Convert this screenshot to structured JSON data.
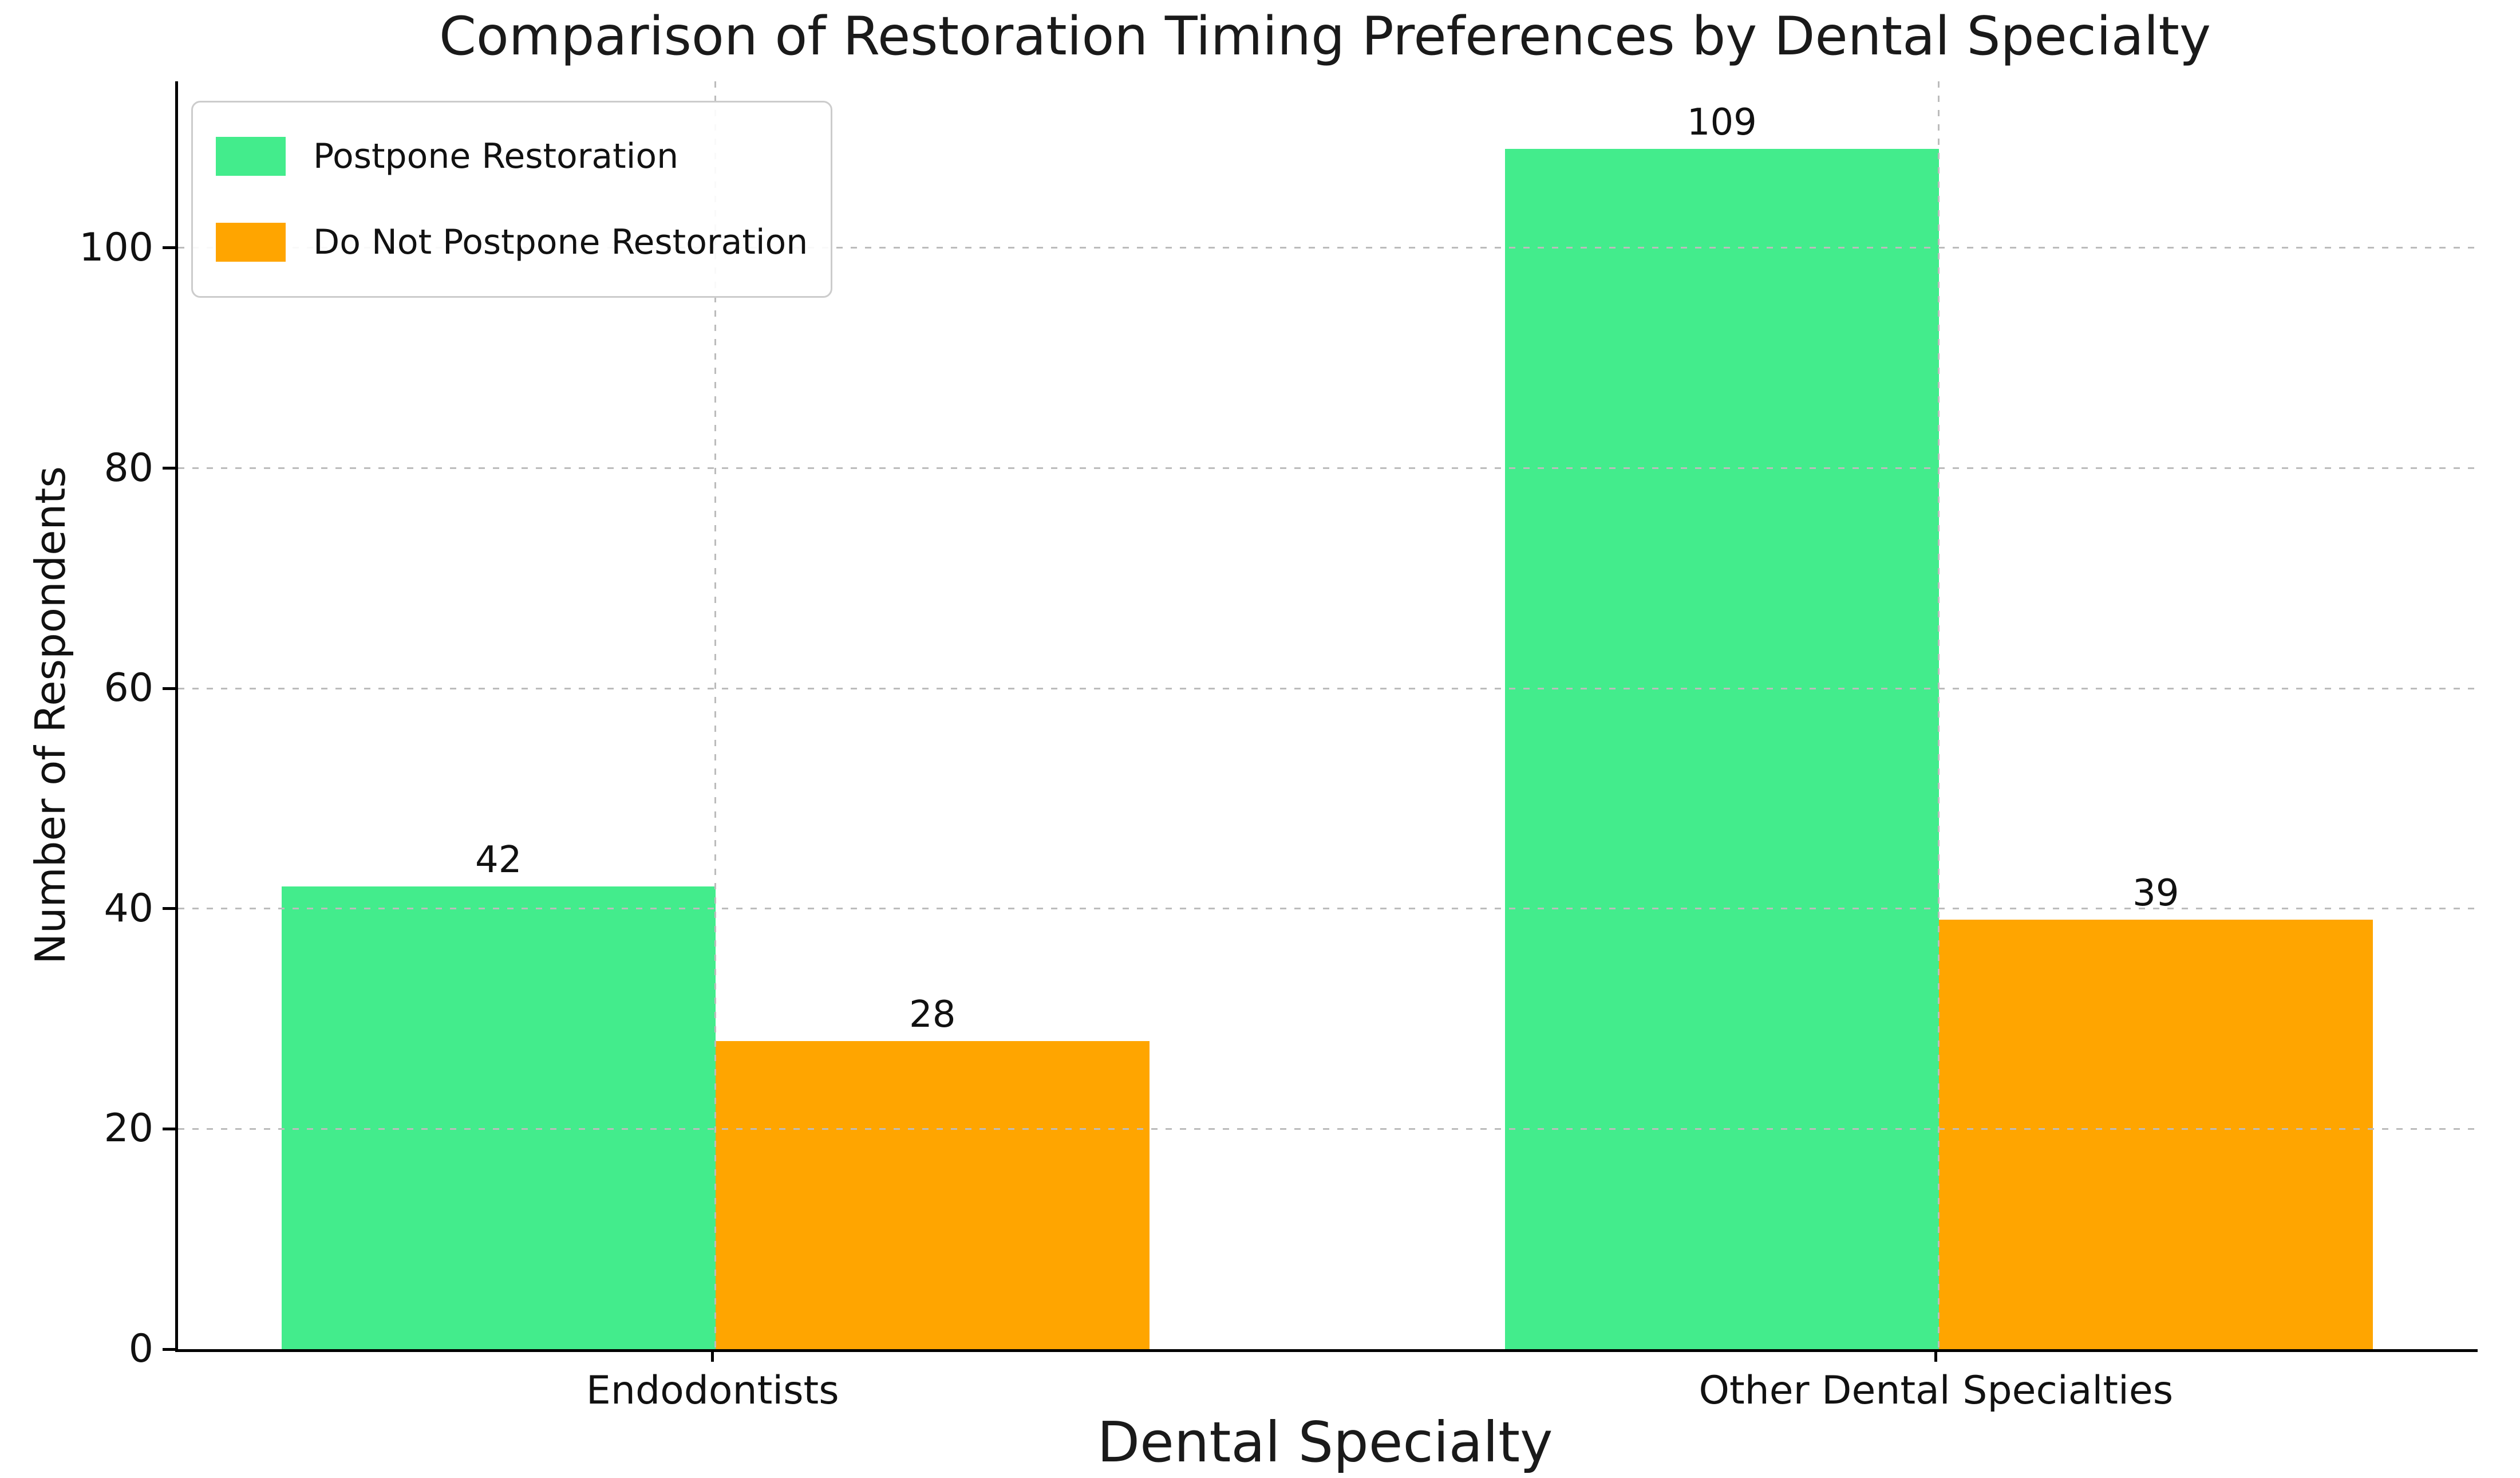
{
  "chart_data": {
    "type": "bar",
    "title": "Comparison of Restoration Timing Preferences by Dental Specialty",
    "xlabel": "Dental Specialty",
    "ylabel": "Number of Respondents",
    "categories": [
      "Endodontists",
      "Other Dental Specialties"
    ],
    "series": [
      {
        "name": "Postpone Restoration",
        "color": "#43EC8C",
        "values": [
          42,
          109
        ]
      },
      {
        "name": "Do Not Postpone Restoration",
        "color": "#FFA500",
        "values": [
          28,
          39
        ]
      }
    ],
    "y_ticks": [
      0,
      20,
      40,
      60,
      80,
      100
    ],
    "ylim": [
      0,
      115
    ],
    "grid": "dashed gray horizontal and vertical lines at ticks, drawn above bars",
    "legend_position": "upper left",
    "value_labels": [
      42,
      28,
      109,
      39
    ]
  },
  "colors": {
    "bar_green": "#43EC8C",
    "bar_orange": "#FFA500",
    "grid": "#bcbcbc",
    "axis_spine": "#000000",
    "text": "#111111",
    "legend_border": "#cccccc",
    "background": "#ffffff"
  }
}
